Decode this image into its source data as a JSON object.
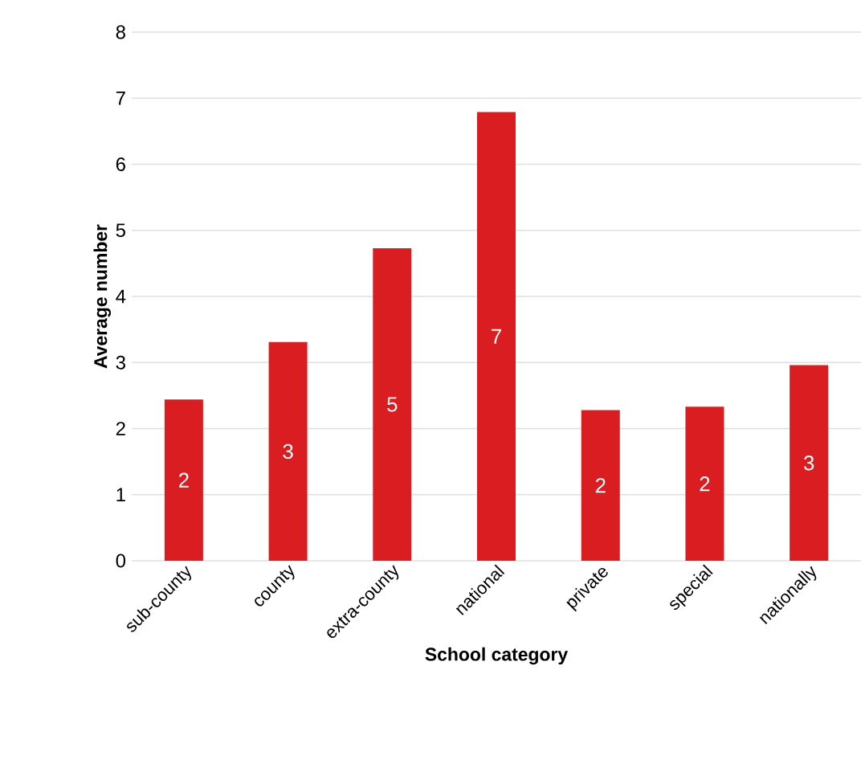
{
  "chart_data": {
    "type": "bar",
    "xlabel": "School category",
    "ylabel": "Average number",
    "categories": [
      "sub-county",
      "county",
      "extra-county",
      "national",
      "private",
      "special",
      "nationally"
    ],
    "values": [
      2.44,
      3.31,
      4.73,
      6.79,
      2.28,
      2.33,
      2.96
    ],
    "value_labels": [
      "2",
      "3",
      "5",
      "7",
      "2",
      "2",
      "3"
    ],
    "color": "#d91d20",
    "ylim": [
      0,
      8
    ],
    "yticks": [
      0,
      1,
      2,
      3,
      4,
      5,
      6,
      7,
      8
    ],
    "grid": "y"
  }
}
